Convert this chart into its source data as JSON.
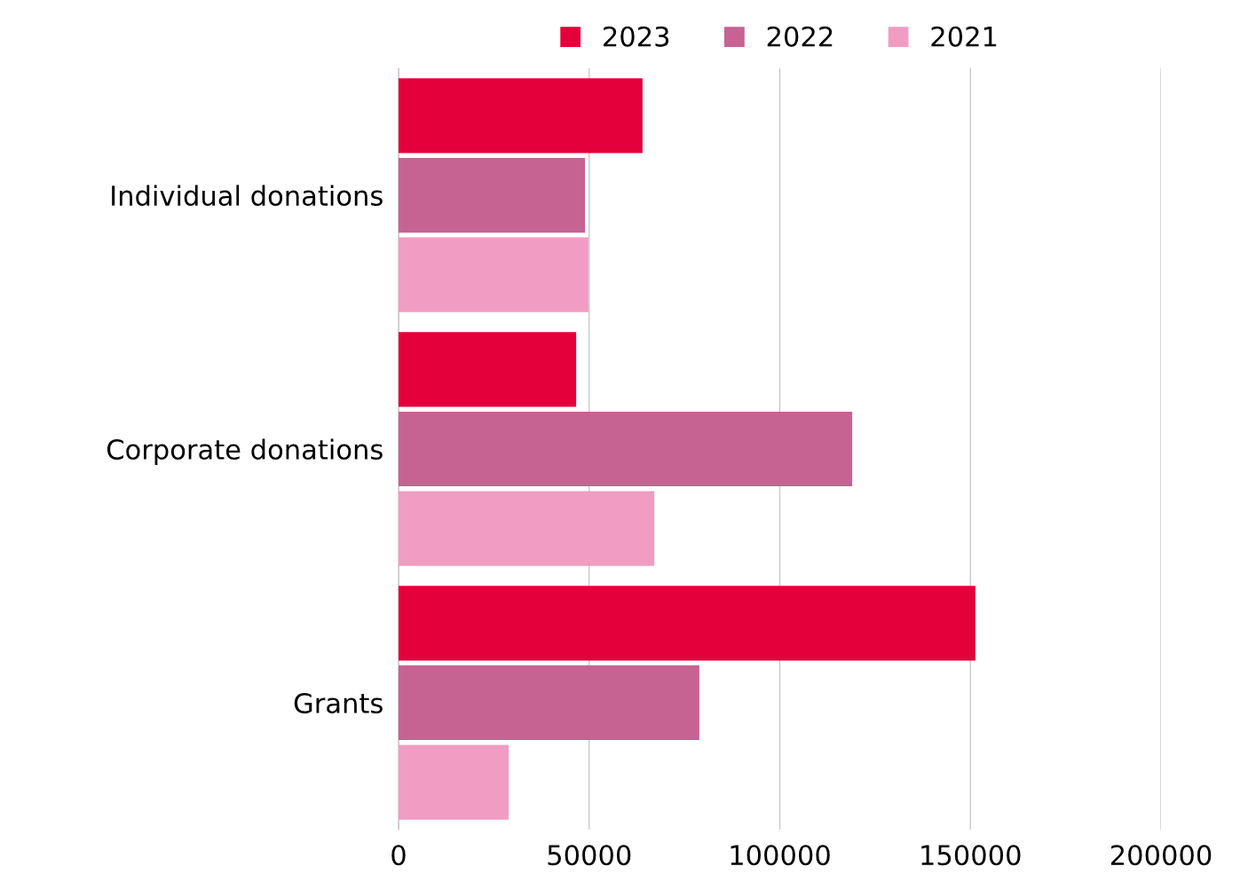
{
  "chart_data": {
    "type": "bar",
    "orientation": "horizontal",
    "categories": [
      "Individual donations",
      "Corporate donations",
      "Grants"
    ],
    "series": [
      {
        "name": "2023",
        "color": "#e4003b",
        "values": [
          64000,
          46600,
          151300
        ]
      },
      {
        "name": "2022",
        "color": "#c66393",
        "values": [
          48900,
          119000,
          78900
        ]
      },
      {
        "name": "2021",
        "color": "#f19cc2",
        "values": [
          49800,
          67100,
          28900
        ]
      }
    ],
    "xlim": [
      0,
      200000
    ],
    "xticks": [
      0,
      50000,
      100000,
      150000,
      200000
    ],
    "grid": "x",
    "legend": "top"
  }
}
